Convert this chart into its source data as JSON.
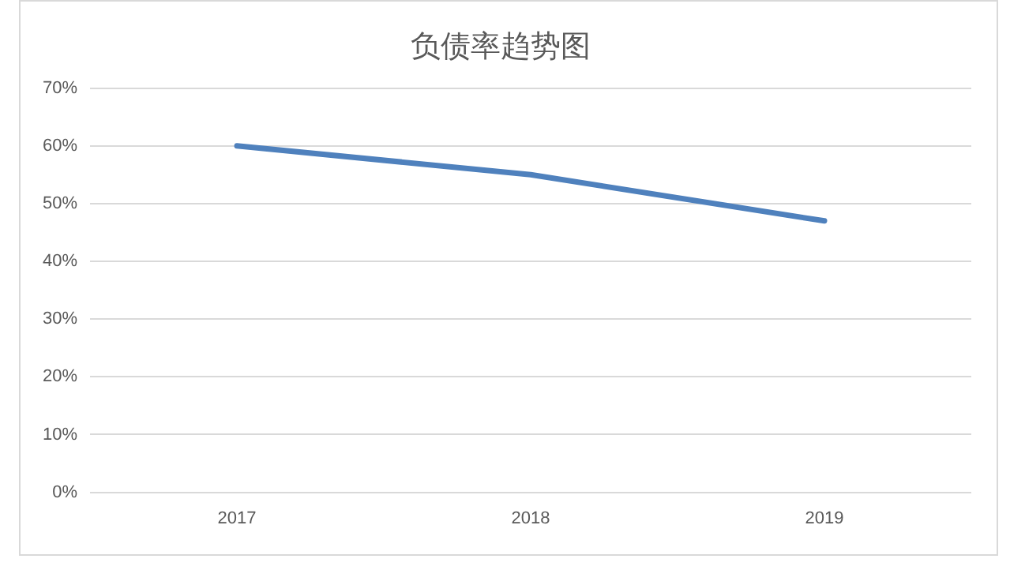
{
  "chart_data": {
    "type": "line",
    "title": "负债率趋势图",
    "categories": [
      "2017",
      "2018",
      "2019"
    ],
    "series": [
      {
        "color": "#4f81bd",
        "values": [
          60,
          55,
          47
        ]
      }
    ],
    "ylim": [
      0,
      70
    ],
    "yticks": [
      {
        "value": 0,
        "label": "0%"
      },
      {
        "value": 10,
        "label": "10%"
      },
      {
        "value": 20,
        "label": "20%"
      },
      {
        "value": 30,
        "label": "30%"
      },
      {
        "value": 40,
        "label": "40%"
      },
      {
        "value": 50,
        "label": "50%"
      },
      {
        "value": 60,
        "label": "60%"
      },
      {
        "value": 70,
        "label": "70%"
      }
    ],
    "grid": "y",
    "legend": false,
    "marker": "none",
    "line_style": "solid"
  }
}
